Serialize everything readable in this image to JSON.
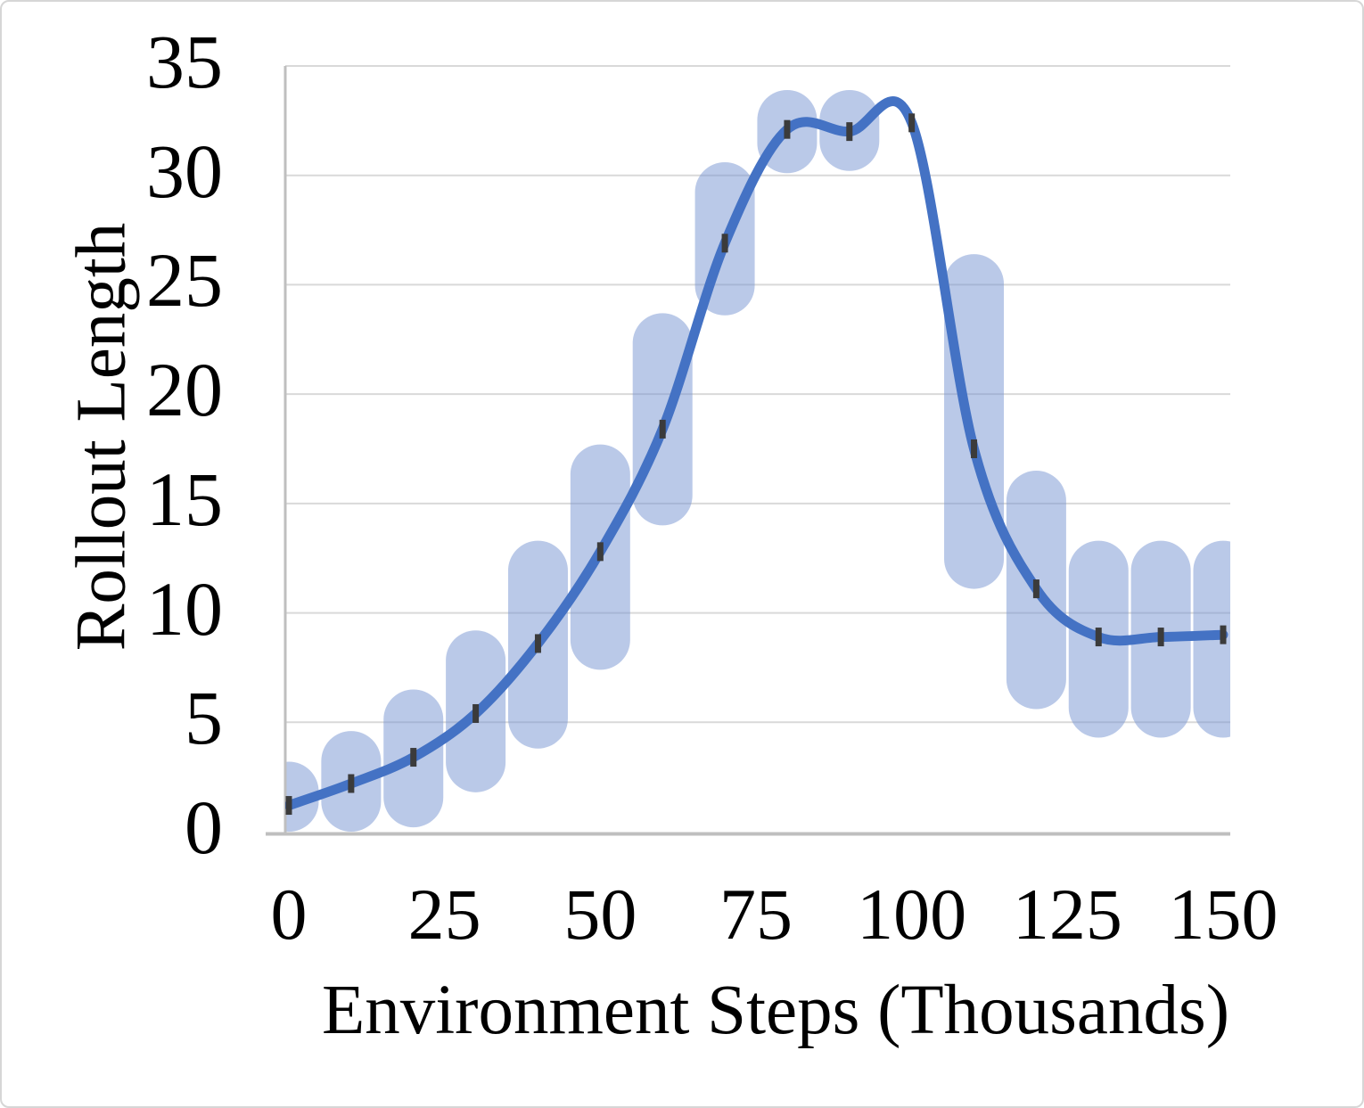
{
  "frame": {
    "background": "#ffffff",
    "border_color": "#d6d6d6"
  },
  "chart_data": {
    "type": "line",
    "title": "",
    "xlabel": "Environment Steps (Thousands)",
    "ylabel": "Rollout Length",
    "x": [
      0,
      10,
      20,
      30,
      40,
      50,
      60,
      70,
      80,
      90,
      100,
      110,
      120,
      130,
      140,
      150
    ],
    "series": [
      {
        "name": "Rollout Length",
        "values": [
          1.2,
          2.2,
          3.4,
          5.4,
          8.6,
          12.8,
          18.4,
          26.9,
          32.1,
          32.0,
          32.4,
          17.5,
          11.1,
          8.9,
          8.9,
          9.0
        ]
      }
    ],
    "band_low": [
      0.0,
      0.0,
      0.2,
      1.8,
      3.8,
      7.4,
      14.0,
      23.6,
      30.1,
      30.2,
      null,
      11.1,
      5.6,
      4.3,
      4.3,
      4.3
    ],
    "band_high": [
      3.2,
      4.6,
      6.5,
      9.2,
      13.3,
      17.7,
      23.7,
      30.6,
      33.9,
      33.9,
      null,
      26.4,
      16.5,
      13.3,
      13.3,
      13.3
    ],
    "x_ticks": [
      "0",
      "25",
      "50",
      "75",
      "100",
      "125",
      "150"
    ],
    "x_tick_values": [
      0,
      25,
      50,
      75,
      100,
      125,
      150
    ],
    "y_ticks": [
      "0",
      "5",
      "10",
      "15",
      "20",
      "25",
      "30",
      "35"
    ],
    "y_tick_values": [
      0,
      5,
      10,
      15,
      20,
      25,
      30,
      35
    ],
    "xlim": [
      0,
      150
    ],
    "ylim": [
      0,
      35
    ],
    "grid": true,
    "legend_position": "none",
    "line_smoothing": true,
    "marker_shape": "dash",
    "colors": {
      "line": "#4472C4",
      "band_fill": "#7694D2",
      "band_opacity": "0.5",
      "gridline": "#D9D9D9",
      "axis_line": "#BFBFBF",
      "marker": "#3B3B3B",
      "text": "#000000"
    }
  }
}
